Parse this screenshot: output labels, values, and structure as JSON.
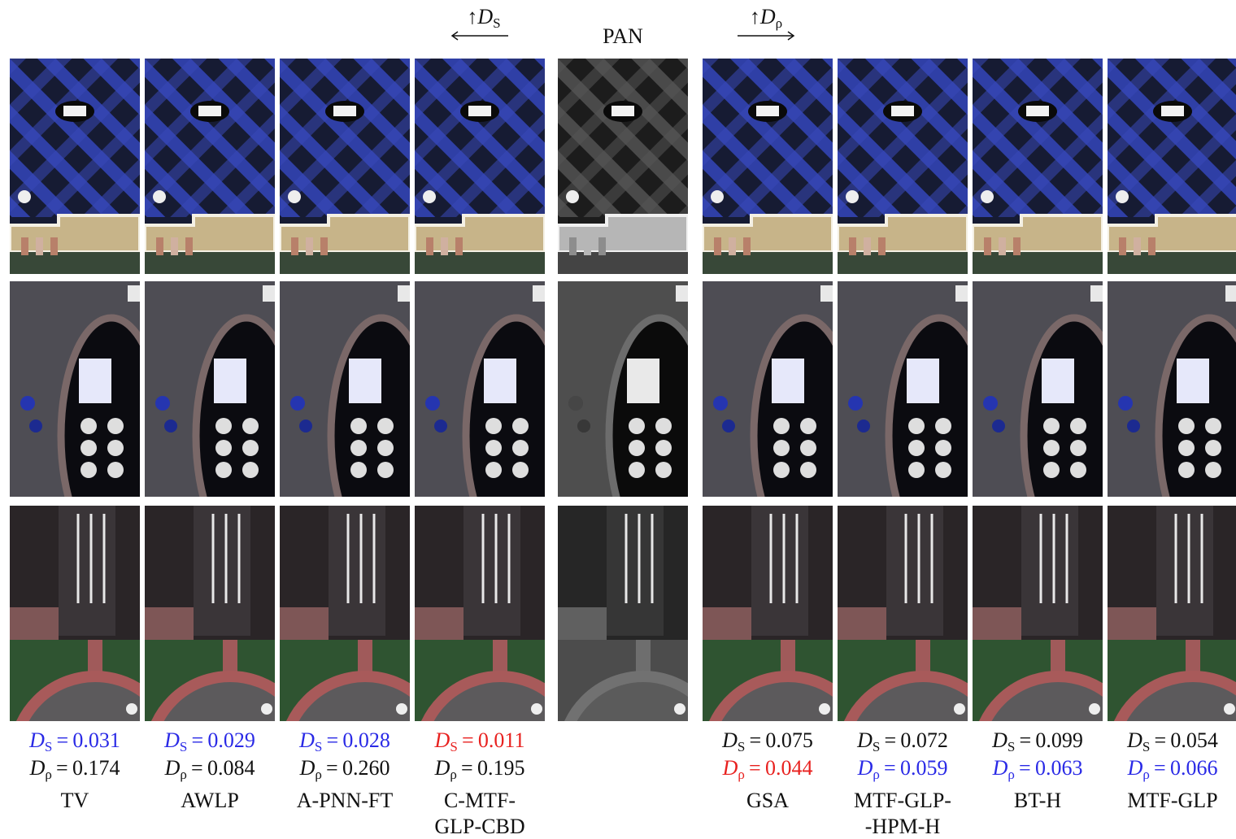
{
  "header": {
    "left": {
      "arrow": "↑",
      "symbol": "D",
      "sub": "S"
    },
    "center": "PAN",
    "right": {
      "arrow": "↑",
      "symbol": "D",
      "sub": "ρ"
    }
  },
  "metrics": {
    "ds": {
      "symbol": "D",
      "sub": "S"
    },
    "dp": {
      "symbol": "D",
      "sub": "ρ"
    },
    "equals": "="
  },
  "colors": {
    "best": "#e8211f",
    "good": "#2a2ae6",
    "plain": "#111111"
  },
  "columns": [
    {
      "label": [
        "TV"
      ],
      "ds": {
        "value": "0.031",
        "color": "good"
      },
      "dp": {
        "value": "0.174",
        "color": "plain"
      }
    },
    {
      "label": [
        "AWLP"
      ],
      "ds": {
        "value": "0.029",
        "color": "good"
      },
      "dp": {
        "value": "0.084",
        "color": "plain"
      }
    },
    {
      "label": [
        "A-PNN-FT"
      ],
      "ds": {
        "value": "0.028",
        "color": "good"
      },
      "dp": {
        "value": "0.260",
        "color": "plain"
      }
    },
    {
      "label": [
        "C-MTF-",
        "GLP-CBD"
      ],
      "ds": {
        "value": "0.011",
        "color": "best"
      },
      "dp": {
        "value": "0.195",
        "color": "plain"
      }
    },
    {
      "label": [
        "GSA"
      ],
      "ds": {
        "value": "0.075",
        "color": "plain"
      },
      "dp": {
        "value": "0.044",
        "color": "best"
      }
    },
    {
      "label": [
        "MTF-GLP-",
        "-HPM-H"
      ],
      "ds": {
        "value": "0.072",
        "color": "plain"
      },
      "dp": {
        "value": "0.059",
        "color": "good"
      }
    },
    {
      "label": [
        "BT-H"
      ],
      "ds": {
        "value": "0.099",
        "color": "plain"
      },
      "dp": {
        "value": "0.063",
        "color": "good"
      }
    },
    {
      "label": [
        "MTF-GLP"
      ],
      "ds": {
        "value": "0.054",
        "color": "plain"
      },
      "dp": {
        "value": "0.066",
        "color": "good"
      }
    }
  ]
}
